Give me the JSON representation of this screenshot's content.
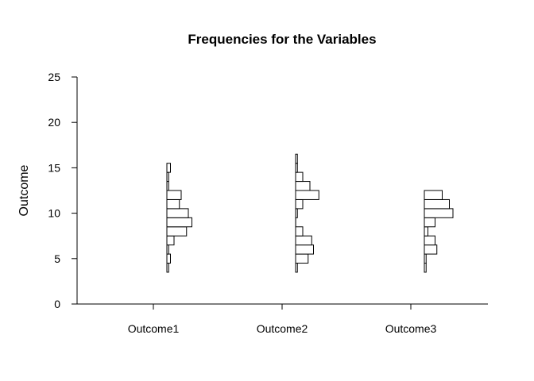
{
  "chart_data": {
    "type": "bar",
    "subtype": "side-by-side horizontal histograms",
    "title": "Frequencies for the Variables",
    "xlabel": "",
    "ylabel": "Outcome",
    "ylim": [
      0,
      25
    ],
    "y_ticks": [
      0,
      5,
      10,
      15,
      20,
      25
    ],
    "bin_width": 1,
    "grid": false,
    "legend": "none",
    "bar_fill": "#ffffff",
    "bar_stroke": "#000000",
    "categories": [
      "Outcome1",
      "Outcome2",
      "Outcome3"
    ],
    "series": [
      {
        "name": "Outcome1",
        "bins": [
          {
            "from": 3.5,
            "to": 4.5,
            "count": 1
          },
          {
            "from": 4.5,
            "to": 5.5,
            "count": 2
          },
          {
            "from": 5.5,
            "to": 6.5,
            "count": 1
          },
          {
            "from": 6.5,
            "to": 7.5,
            "count": 4
          },
          {
            "from": 7.5,
            "to": 8.5,
            "count": 11
          },
          {
            "from": 8.5,
            "to": 9.5,
            "count": 14
          },
          {
            "from": 9.5,
            "to": 10.5,
            "count": 12
          },
          {
            "from": 10.5,
            "to": 11.5,
            "count": 7
          },
          {
            "from": 11.5,
            "to": 12.5,
            "count": 8
          },
          {
            "from": 12.5,
            "to": 13.5,
            "count": 1
          },
          {
            "from": 13.5,
            "to": 14.5,
            "count": 1
          },
          {
            "from": 14.5,
            "to": 15.5,
            "count": 2
          }
        ]
      },
      {
        "name": "Outcome2",
        "bins": [
          {
            "from": 3.5,
            "to": 4.5,
            "count": 1
          },
          {
            "from": 4.5,
            "to": 5.5,
            "count": 7
          },
          {
            "from": 5.5,
            "to": 6.5,
            "count": 10
          },
          {
            "from": 6.5,
            "to": 7.5,
            "count": 9
          },
          {
            "from": 7.5,
            "to": 8.5,
            "count": 4
          },
          {
            "from": 8.5,
            "to": 9.5,
            "count": 0
          },
          {
            "from": 9.5,
            "to": 10.5,
            "count": 1
          },
          {
            "from": 10.5,
            "to": 11.5,
            "count": 4
          },
          {
            "from": 11.5,
            "to": 12.5,
            "count": 13
          },
          {
            "from": 12.5,
            "to": 13.5,
            "count": 8
          },
          {
            "from": 13.5,
            "to": 14.5,
            "count": 4
          },
          {
            "from": 14.5,
            "to": 15.5,
            "count": 1
          },
          {
            "from": 15.5,
            "to": 16.5,
            "count": 1
          }
        ]
      },
      {
        "name": "Outcome3",
        "bins": [
          {
            "from": 3.5,
            "to": 4.5,
            "count": 1
          },
          {
            "from": 4.5,
            "to": 5.5,
            "count": 1
          },
          {
            "from": 5.5,
            "to": 6.5,
            "count": 7
          },
          {
            "from": 6.5,
            "to": 7.5,
            "count": 6
          },
          {
            "from": 7.5,
            "to": 8.5,
            "count": 2
          },
          {
            "from": 8.5,
            "to": 9.5,
            "count": 6
          },
          {
            "from": 9.5,
            "to": 10.5,
            "count": 16
          },
          {
            "from": 10.5,
            "to": 11.5,
            "count": 14
          },
          {
            "from": 11.5,
            "to": 12.5,
            "count": 10
          }
        ]
      }
    ]
  }
}
